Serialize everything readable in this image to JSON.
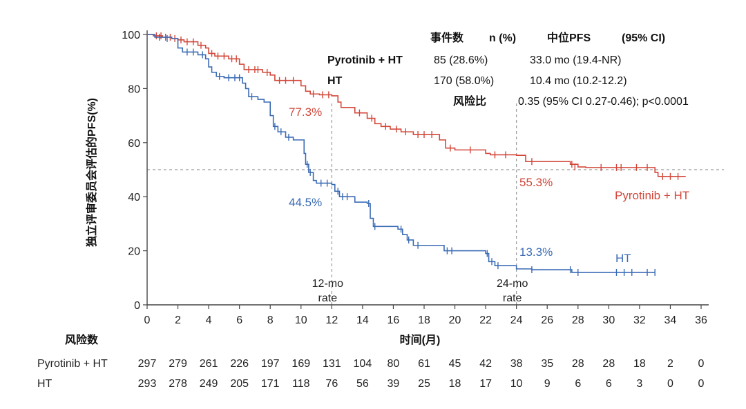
{
  "chart_data": {
    "type": "line",
    "chart_kind": "kaplan-meier",
    "ylabel": "独立评审委员会评估的PFS(%)",
    "xlabel": "时间(月)",
    "xlim": [
      0,
      36
    ],
    "ylim": [
      0,
      100
    ],
    "x_ticks": [
      "0",
      "2",
      "4",
      "6",
      "8",
      "10",
      "12",
      "14",
      "16",
      "18",
      "20",
      "22",
      "24",
      "26",
      "28",
      "30",
      "32",
      "34",
      "36"
    ],
    "y_ticks": [
      "0",
      "20",
      "40",
      "60",
      "80",
      "100"
    ],
    "reference_line_y": 50,
    "reference_lines_x": [
      12,
      24
    ],
    "ref_labels": [
      {
        "x": 12,
        "line1": "12-mo",
        "line2": "rate"
      },
      {
        "x": 24,
        "line1": "24-mo",
        "line2": "rate"
      }
    ],
    "series": [
      {
        "name": "Pyrotinib + HT",
        "color": "#d2473a",
        "label": "Pyrotinib + HT",
        "steps": [
          [
            0,
            100
          ],
          [
            0.4,
            99.5
          ],
          [
            1,
            99
          ],
          [
            1.6,
            98.5
          ],
          [
            2,
            98
          ],
          [
            2.4,
            97.3
          ],
          [
            3.3,
            96
          ],
          [
            3.8,
            95
          ],
          [
            4,
            93
          ],
          [
            4.4,
            92
          ],
          [
            5.3,
            91
          ],
          [
            6,
            89
          ],
          [
            6.3,
            87
          ],
          [
            7.5,
            86
          ],
          [
            8,
            85
          ],
          [
            8.3,
            83
          ],
          [
            10,
            81
          ],
          [
            10.3,
            79
          ],
          [
            10.6,
            78
          ],
          [
            11.2,
            77.7
          ],
          [
            12,
            77.3
          ],
          [
            12.4,
            75
          ],
          [
            12.6,
            73
          ],
          [
            13.5,
            71
          ],
          [
            14.3,
            69
          ],
          [
            14.8,
            67
          ],
          [
            15.2,
            66
          ],
          [
            15.8,
            65
          ],
          [
            16.5,
            64
          ],
          [
            17.3,
            63
          ],
          [
            19,
            61
          ],
          [
            19.4,
            58
          ],
          [
            20,
            57.3
          ],
          [
            22,
            56
          ],
          [
            22.3,
            55.5
          ],
          [
            24,
            55.3
          ],
          [
            24.6,
            53
          ],
          [
            27.5,
            52
          ],
          [
            28,
            51
          ],
          [
            28.5,
            50.8
          ],
          [
            33,
            49
          ],
          [
            33.2,
            47.5
          ],
          [
            35,
            47.5
          ]
        ],
        "censored": [
          [
            0.6,
            99.5
          ],
          [
            0.9,
            99.5
          ],
          [
            1.2,
            99
          ],
          [
            1.5,
            99
          ],
          [
            1.8,
            98.5
          ],
          [
            2.2,
            98
          ],
          [
            2.6,
            97.3
          ],
          [
            3,
            97.3
          ],
          [
            3.5,
            96
          ],
          [
            4.2,
            93
          ],
          [
            4.6,
            92
          ],
          [
            5,
            92
          ],
          [
            5.5,
            91
          ],
          [
            5.8,
            91
          ],
          [
            6.6,
            87
          ],
          [
            7,
            87
          ],
          [
            7.2,
            87
          ],
          [
            7.8,
            86
          ],
          [
            8.6,
            83
          ],
          [
            9,
            83
          ],
          [
            9.5,
            83
          ],
          [
            10.8,
            78
          ],
          [
            11.4,
            77.7
          ],
          [
            11.8,
            77.7
          ],
          [
            13.8,
            71
          ],
          [
            14.6,
            69
          ],
          [
            15.5,
            66
          ],
          [
            16.2,
            65
          ],
          [
            16.8,
            64
          ],
          [
            17.6,
            63
          ],
          [
            18,
            63
          ],
          [
            18.5,
            63
          ],
          [
            19.7,
            58
          ],
          [
            21,
            57.3
          ],
          [
            22.6,
            55.5
          ],
          [
            23.3,
            55.5
          ],
          [
            25,
            53
          ],
          [
            27.6,
            52
          ],
          [
            27.8,
            51
          ],
          [
            29.5,
            50.8
          ],
          [
            30.5,
            50.8
          ],
          [
            30.8,
            50.8
          ],
          [
            31.8,
            50.8
          ],
          [
            32.5,
            50.8
          ],
          [
            33.5,
            47.5
          ],
          [
            34,
            47.5
          ],
          [
            34.5,
            47.5
          ]
        ]
      },
      {
        "name": "HT",
        "color": "#3a6bb5",
        "label": "HT",
        "steps": [
          [
            0,
            100
          ],
          [
            0.5,
            99
          ],
          [
            1.6,
            98.5
          ],
          [
            2,
            95
          ],
          [
            2.3,
            93.5
          ],
          [
            3.3,
            92.5
          ],
          [
            3.8,
            91
          ],
          [
            4,
            88
          ],
          [
            4.2,
            86
          ],
          [
            4.5,
            84.5
          ],
          [
            5,
            84
          ],
          [
            6.2,
            82
          ],
          [
            6.4,
            80
          ],
          [
            6.6,
            77
          ],
          [
            7.2,
            76
          ],
          [
            7.6,
            75
          ],
          [
            8,
            70
          ],
          [
            8.2,
            66
          ],
          [
            8.5,
            64
          ],
          [
            9,
            62
          ],
          [
            9.5,
            61
          ],
          [
            10.2,
            56
          ],
          [
            10.3,
            52
          ],
          [
            10.5,
            49
          ],
          [
            10.8,
            46
          ],
          [
            11,
            45
          ],
          [
            12,
            44.5
          ],
          [
            12.2,
            42
          ],
          [
            12.5,
            40
          ],
          [
            13.5,
            38
          ],
          [
            14.3,
            37.5
          ],
          [
            14.5,
            32
          ],
          [
            14.7,
            29
          ],
          [
            16.3,
            28
          ],
          [
            16.6,
            26
          ],
          [
            16.9,
            24
          ],
          [
            17.3,
            22
          ],
          [
            19.3,
            20
          ],
          [
            22,
            19
          ],
          [
            22.2,
            16
          ],
          [
            22.6,
            14.5
          ],
          [
            24,
            13.3
          ],
          [
            25,
            13
          ],
          [
            27.6,
            12
          ],
          [
            33,
            12
          ]
        ],
        "censored": [
          [
            0.8,
            99
          ],
          [
            1.3,
            98.5
          ],
          [
            2.6,
            93.5
          ],
          [
            3,
            93.5
          ],
          [
            3.6,
            92.5
          ],
          [
            4.7,
            84.5
          ],
          [
            5.3,
            84
          ],
          [
            5.7,
            84
          ],
          [
            6,
            84
          ],
          [
            6.8,
            77
          ],
          [
            8.3,
            66
          ],
          [
            8.7,
            64
          ],
          [
            9.2,
            62
          ],
          [
            10.4,
            52
          ],
          [
            10.6,
            49
          ],
          [
            11.3,
            45
          ],
          [
            11.7,
            45
          ],
          [
            12.4,
            42
          ],
          [
            12.7,
            40
          ],
          [
            13,
            40
          ],
          [
            14.4,
            37.5
          ],
          [
            14.8,
            29
          ],
          [
            16.5,
            28
          ],
          [
            17,
            24
          ],
          [
            17.6,
            22
          ],
          [
            19.5,
            20
          ],
          [
            19.8,
            20
          ],
          [
            22.1,
            19
          ],
          [
            22.4,
            16
          ],
          [
            22.8,
            14.5
          ],
          [
            25,
            13
          ],
          [
            27.5,
            13
          ],
          [
            28,
            12
          ],
          [
            30.5,
            12
          ],
          [
            31,
            12
          ],
          [
            31.5,
            12
          ],
          [
            32.5,
            12
          ],
          [
            33,
            12
          ]
        ]
      }
    ],
    "annotations": [
      {
        "text": "77.3%",
        "color": "#d2473a"
      },
      {
        "text": "44.5%",
        "color": "#3a6bb5"
      },
      {
        "text": "55.3%",
        "color": "#d2473a"
      },
      {
        "text": "13.3%",
        "color": "#3a6bb5"
      }
    ],
    "legend_table": {
      "headers": {
        "events": "事件数",
        "n": "n (%)",
        "median": "中位PFS",
        "ci": "(95% CI)"
      },
      "rows": [
        {
          "name": "Pyrotinib + HT",
          "n": "85 (28.6%)",
          "median": "33.0 mo (19.4-NR)"
        },
        {
          "name": "HT",
          "n": "170 (58.0%)",
          "median": "10.4 mo (10.2-12.2)"
        }
      ],
      "hr_label": "风险比",
      "hr_value": "0.35 (95% CI 0.27-0.46); p<0.0001"
    },
    "risk_table": {
      "title": "风险数",
      "rows": [
        {
          "name": "Pyrotinib + HT",
          "values": [
            "297",
            "279",
            "261",
            "226",
            "197",
            "169",
            "131",
            "104",
            "80",
            "61",
            "45",
            "42",
            "38",
            "35",
            "28",
            "28",
            "18",
            "2",
            "0"
          ]
        },
        {
          "name": "HT",
          "values": [
            "293",
            "278",
            "249",
            "205",
            "171",
            "118",
            "76",
            "56",
            "39",
            "25",
            "18",
            "17",
            "10",
            "9",
            "6",
            "6",
            "3",
            "0",
            "0"
          ]
        }
      ]
    }
  }
}
